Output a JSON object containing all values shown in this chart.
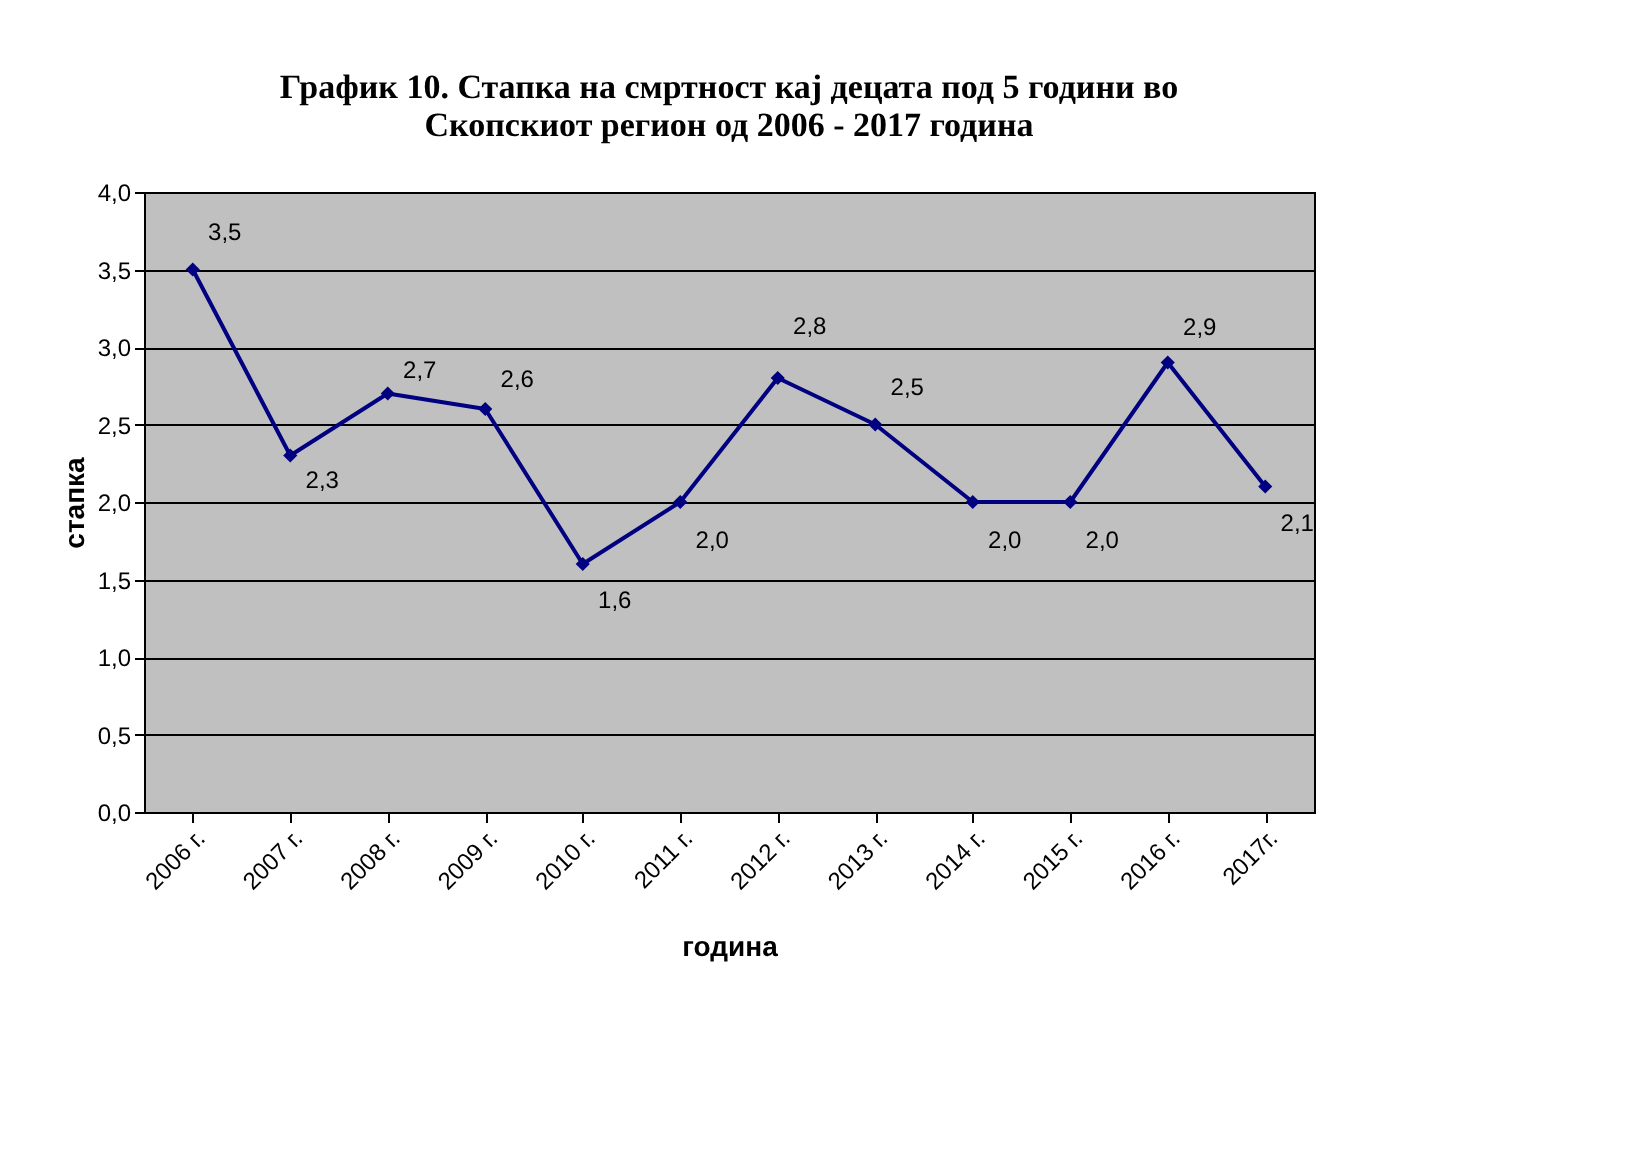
{
  "chart_data": {
    "type": "line",
    "title": [
      "График 10. Стапка на смртност кај децата под 5 години во",
      "Скопскиот регион од 2006 - 2017 година"
    ],
    "xlabel": "година",
    "ylabel": "стапка",
    "categories": [
      "2006 г.",
      "2007 г.",
      "2008 г.",
      "2009 г.",
      "2010 г.",
      "2011 г.",
      "2012 г.",
      "2013 г.",
      "2014 г.",
      "2015 г.",
      "2016 г.",
      "2017г."
    ],
    "series": [
      {
        "color": "#000080",
        "values": [
          3.5,
          2.3,
          2.7,
          2.6,
          1.6,
          2.0,
          2.8,
          2.5,
          2.0,
          2.0,
          2.9,
          2.1
        ],
        "value_labels": [
          "3,5",
          "2,3",
          "2,7",
          "2,6",
          "1,6",
          "2,0",
          "2,8",
          "2,5",
          "2,0",
          "2,0",
          "2,9",
          "2,1"
        ]
      }
    ],
    "ylim": [
      0,
      4
    ],
    "yticks": [
      {
        "value": 0,
        "label": "0,0"
      },
      {
        "value": 0.5,
        "label": "0,5"
      },
      {
        "value": 1,
        "label": "1,0"
      },
      {
        "value": 1.5,
        "label": "1,5"
      },
      {
        "value": 2,
        "label": "2,0"
      },
      {
        "value": 2.5,
        "label": "2,5"
      },
      {
        "value": 3,
        "label": "3,0"
      },
      {
        "value": 3.5,
        "label": "3,5"
      },
      {
        "value": 4,
        "label": "4,0"
      }
    ],
    "grid": "y",
    "marker": "diamond",
    "line_style": "solid"
  }
}
